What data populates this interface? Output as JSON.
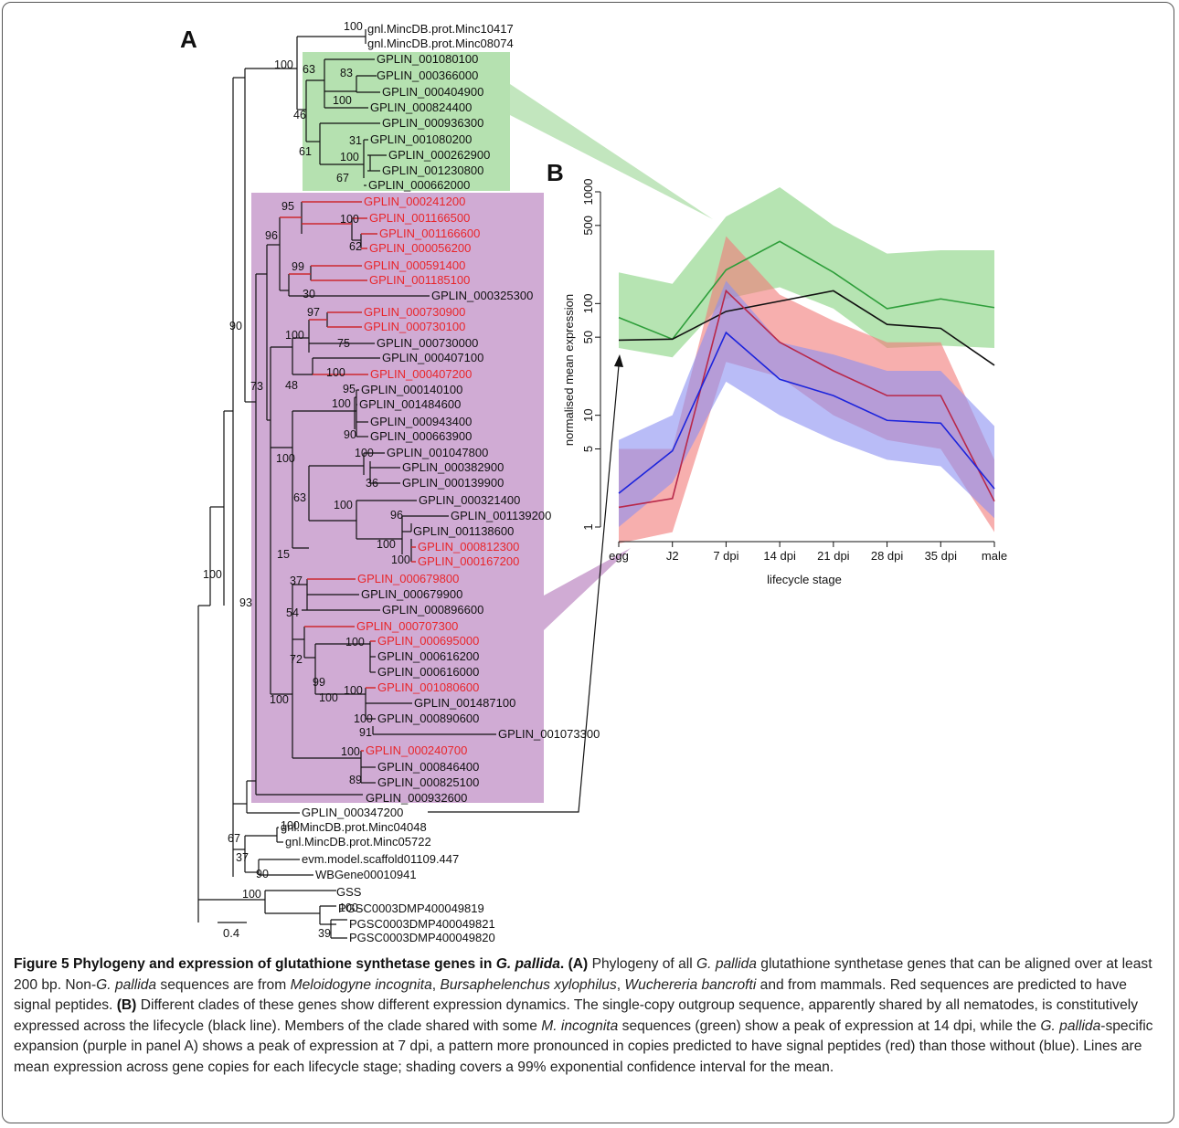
{
  "panels": {
    "a_label": "A",
    "b_label": "B"
  },
  "tree": {
    "scale_label": "0.4",
    "tips": [
      {
        "label": "gnl.MincDB.prot.Minc10417",
        "signal_peptide": false
      },
      {
        "label": "gnl.MincDB.prot.Minc08074",
        "signal_peptide": false
      },
      {
        "label": "GPLIN_001080100",
        "signal_peptide": false
      },
      {
        "label": "GPLIN_000366000",
        "signal_peptide": false
      },
      {
        "label": "GPLIN_000404900",
        "signal_peptide": false
      },
      {
        "label": "GPLIN_000824400",
        "signal_peptide": false
      },
      {
        "label": "GPLIN_000936300",
        "signal_peptide": false
      },
      {
        "label": "GPLIN_001080200",
        "signal_peptide": false
      },
      {
        "label": "GPLIN_000262900",
        "signal_peptide": false
      },
      {
        "label": "GPLIN_001230800",
        "signal_peptide": false
      },
      {
        "label": "GPLIN_000662000",
        "signal_peptide": false
      },
      {
        "label": "GPLIN_000241200",
        "signal_peptide": true
      },
      {
        "label": "GPLIN_001166500",
        "signal_peptide": true
      },
      {
        "label": "GPLIN_001166600",
        "signal_peptide": true
      },
      {
        "label": "GPLIN_000056200",
        "signal_peptide": true
      },
      {
        "label": "GPLIN_000591400",
        "signal_peptide": true
      },
      {
        "label": "GPLIN_001185100",
        "signal_peptide": true
      },
      {
        "label": "GPLIN_000325300",
        "signal_peptide": false
      },
      {
        "label": "GPLIN_000730900",
        "signal_peptide": true
      },
      {
        "label": "GPLIN_000730100",
        "signal_peptide": true
      },
      {
        "label": "GPLIN_000730000",
        "signal_peptide": false
      },
      {
        "label": "GPLIN_000407100",
        "signal_peptide": false
      },
      {
        "label": "GPLIN_000407200",
        "signal_peptide": true
      },
      {
        "label": "GPLIN_000140100",
        "signal_peptide": false
      },
      {
        "label": "GPLIN_001484600",
        "signal_peptide": false
      },
      {
        "label": "GPLIN_000943400",
        "signal_peptide": false
      },
      {
        "label": "GPLIN_000663900",
        "signal_peptide": false
      },
      {
        "label": "GPLIN_001047800",
        "signal_peptide": false
      },
      {
        "label": "GPLIN_000382900",
        "signal_peptide": false
      },
      {
        "label": "GPLIN_000139900",
        "signal_peptide": false
      },
      {
        "label": "GPLIN_000321400",
        "signal_peptide": false
      },
      {
        "label": "GPLIN_001139200",
        "signal_peptide": false
      },
      {
        "label": "GPLIN_001138600",
        "signal_peptide": false
      },
      {
        "label": "GPLIN_000812300",
        "signal_peptide": true
      },
      {
        "label": "GPLIN_000167200",
        "signal_peptide": true
      },
      {
        "label": "GPLIN_000679800",
        "signal_peptide": true
      },
      {
        "label": "GPLIN_000679900",
        "signal_peptide": false
      },
      {
        "label": "GPLIN_000896600",
        "signal_peptide": false
      },
      {
        "label": "GPLIN_000707300",
        "signal_peptide": true
      },
      {
        "label": "GPLIN_000695000",
        "signal_peptide": true
      },
      {
        "label": "GPLIN_000616200",
        "signal_peptide": false
      },
      {
        "label": "GPLIN_000616000",
        "signal_peptide": false
      },
      {
        "label": "GPLIN_001080600",
        "signal_peptide": true
      },
      {
        "label": "GPLIN_001487100",
        "signal_peptide": false
      },
      {
        "label": "GPLIN_000890600",
        "signal_peptide": false
      },
      {
        "label": "GPLIN_001073300",
        "signal_peptide": false
      },
      {
        "label": "GPLIN_000240700",
        "signal_peptide": true
      },
      {
        "label": "GPLIN_000846400",
        "signal_peptide": false
      },
      {
        "label": "GPLIN_000825100",
        "signal_peptide": false
      },
      {
        "label": "GPLIN_000932600",
        "signal_peptide": false
      },
      {
        "label": "GPLIN_000347200",
        "signal_peptide": false
      },
      {
        "label": "gnl.MincDB.prot.Minc04048",
        "signal_peptide": false
      },
      {
        "label": "gnl.MincDB.prot.Minc05722",
        "signal_peptide": false
      },
      {
        "label": "evm.model.scaffold01109.447",
        "signal_peptide": false
      },
      {
        "label": "WBGene00010941",
        "signal_peptide": false
      },
      {
        "label": "GSS",
        "signal_peptide": false
      },
      {
        "label": "PGSC0003DMP400049819",
        "signal_peptide": false
      },
      {
        "label": "PGSC0003DMP400049821",
        "signal_peptide": false
      },
      {
        "label": "PGSC0003DMP400049820",
        "signal_peptide": false
      }
    ],
    "bootstraps": [
      "100",
      "100",
      "63",
      "83",
      "100",
      "46",
      "61",
      "31",
      "100",
      "67",
      "95",
      "100",
      "62",
      "96",
      "99",
      "30",
      "97",
      "100",
      "75",
      "100",
      "90",
      "73",
      "48",
      "95",
      "100",
      "90",
      "100",
      "100",
      "36",
      "63",
      "100",
      "96",
      "100",
      "100",
      "15",
      "93",
      "100",
      "37",
      "54",
      "100",
      "72",
      "99",
      "100",
      "100",
      "100",
      "91",
      "100",
      "89",
      "100",
      "67",
      "100",
      "37",
      "90",
      "100",
      "100",
      "39"
    ],
    "shading": {
      "green_clade": "#9fd89a",
      "purple_clade": "#c89ccc"
    }
  },
  "chart_data": {
    "type": "line",
    "title": "",
    "xlabel": "lifecycle stage",
    "ylabel": "normalised mean expression",
    "yscale": "log",
    "ylim": [
      1,
      1000
    ],
    "yticks": [
      1,
      5,
      10,
      50,
      100,
      500,
      1000
    ],
    "categories": [
      "egg",
      "J2",
      "7 dpi",
      "14 dpi",
      "21 dpi",
      "28 dpi",
      "35 dpi",
      "male"
    ],
    "series": [
      {
        "color": "#2e9e3a",
        "band_color": "#9edb98",
        "values": [
          75,
          48,
          200,
          360,
          190,
          90,
          110,
          92
        ],
        "lower": [
          40,
          33,
          110,
          140,
          90,
          40,
          42,
          40
        ],
        "upper": [
          190,
          150,
          600,
          1100,
          500,
          280,
          300,
          300
        ]
      },
      {
        "color": "#111111",
        "values": [
          47,
          48,
          85,
          105,
          130,
          65,
          60,
          28
        ]
      },
      {
        "color": "#b8284a",
        "band_color": "#f27a78",
        "values": [
          1.5,
          1.8,
          130,
          45,
          25,
          15,
          15,
          1.7
        ],
        "lower": [
          0.6,
          0.9,
          30,
          22,
          10,
          6,
          5,
          0.9
        ],
        "upper": [
          5,
          5,
          400,
          120,
          70,
          45,
          45,
          4
        ]
      },
      {
        "color": "#1c24dc",
        "band_color": "#8b8ff2",
        "values": [
          2,
          4.8,
          55,
          21,
          15,
          9,
          8.5,
          2.2
        ],
        "lower": [
          1,
          2.5,
          20,
          10,
          6,
          4,
          3.5,
          1.2
        ],
        "upper": [
          6,
          10,
          160,
          45,
          35,
          25,
          25,
          8
        ]
      }
    ]
  },
  "caption": {
    "figure_label": "Figure 5",
    "title_pre": "Phylogeny and expression of glutathione synthetase genes in ",
    "title_species": "G. pallida",
    "title_end": ".",
    "a_tag": "(A)",
    "s1": "Phylogeny of all",
    "s1_species": "G. pallida",
    "s2": "glutathione synthetase genes that can be aligned over at least 200 bp. Non-",
    "s2_species": "G. pallida",
    "s3": "sequences are from",
    "sp_minc": "Meloidogyne incognita",
    "sp_bx": "Bursaphelenchus xylophilus",
    "sp_wb": "Wuchereria bancrofti",
    "s4": "and from mammals. Red sequences are predicted to have signal peptides.",
    "b_tag": "(B)",
    "s5": "Different clades of these genes show different expression dynamics. The single-copy outgroup sequence, apparently shared by all nematodes, is constitutively expressed across the lifecycle (black line). Members of the clade shared with some",
    "s5_species": "M. incognita",
    "s6": "sequences (green) show a peak of expression at 14 dpi, while the",
    "s6_species": "G. pallida",
    "s7": "-specific expansion (purple in panel A) shows a peak of expression at 7 dpi, a pattern more pronounced in copies predicted to have signal peptides (red) than those without (blue). Lines are mean expression across gene copies for each lifecycle stage; shading covers a 99% exponential confidence interval for the mean."
  }
}
